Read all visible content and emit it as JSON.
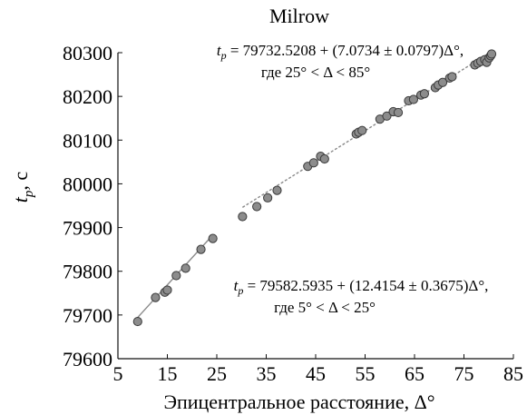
{
  "chart_data": {
    "type": "scatter",
    "title": "Milrow",
    "xlabel": "Эпицентральное расстояние, Δ°",
    "ylabel_main": "t",
    "ylabel_sub": "p",
    "ylabel_rest": ", с",
    "xlim": [
      5,
      85
    ],
    "ylim": [
      79600,
      80300
    ],
    "x_ticks": [
      5,
      15,
      25,
      35,
      45,
      55,
      65,
      75,
      85
    ],
    "y_ticks": [
      79600,
      79700,
      79800,
      79900,
      80000,
      80100,
      80200,
      80300
    ],
    "grid": false,
    "annotations": {
      "upper_line1": "t_p = 79732.5208 + (7.0734 ± 0.0797)Δ°,",
      "upper_line2": "где 25° < Δ < 85°",
      "lower_line1": "t_p = 79582.5935 + (12.4154 ± 0.3675)Δ°,",
      "lower_line2": "где 5° < Δ < 25°"
    },
    "series": [
      {
        "segment": "5-25",
        "x": [
          9.0,
          12.6,
          14.5,
          15.0,
          16.8,
          18.7,
          21.8,
          24.2
        ],
        "y": [
          79685,
          79740,
          79752,
          79757,
          79790,
          79807,
          79850,
          79875
        ]
      },
      {
        "segment": "25-85",
        "x": [
          30.2,
          33.1,
          35.3,
          37.2,
          43.4,
          44.6,
          46.0,
          46.8,
          53.2,
          53.7,
          54.4,
          58.0,
          59.4,
          60.7,
          61.7,
          63.8,
          64.8,
          66.3,
          67.0,
          69.2,
          69.8,
          70.7,
          72.1,
          72.6,
          77.2,
          77.8,
          78.4,
          79.2,
          79.6,
          80.1,
          80.4,
          80.6
        ],
        "y": [
          79925,
          79948,
          79968,
          79985,
          80040,
          80048,
          80063,
          80057,
          80114,
          80118,
          80122,
          80148,
          80155,
          80165,
          80163,
          80190,
          80193,
          80203,
          80206,
          80220,
          80226,
          80232,
          80242,
          80245,
          80272,
          80276,
          80280,
          80284,
          80278,
          80288,
          80293,
          80297
        ]
      }
    ],
    "fit_lines": [
      {
        "intercept": 79582.5935,
        "slope": 12.4154,
        "x_range": [
          9.0,
          24.2
        ]
      },
      {
        "intercept": 79732.5208,
        "slope": 7.0734,
        "x_range": [
          30.2,
          80.6
        ]
      }
    ],
    "colors": {
      "marker_fill": "#8c8c8c",
      "marker_stroke": "#3a3a3a",
      "line_lower": "#8a8a8a",
      "line_upper": "#8a8a8a",
      "axis": "#111111"
    }
  }
}
